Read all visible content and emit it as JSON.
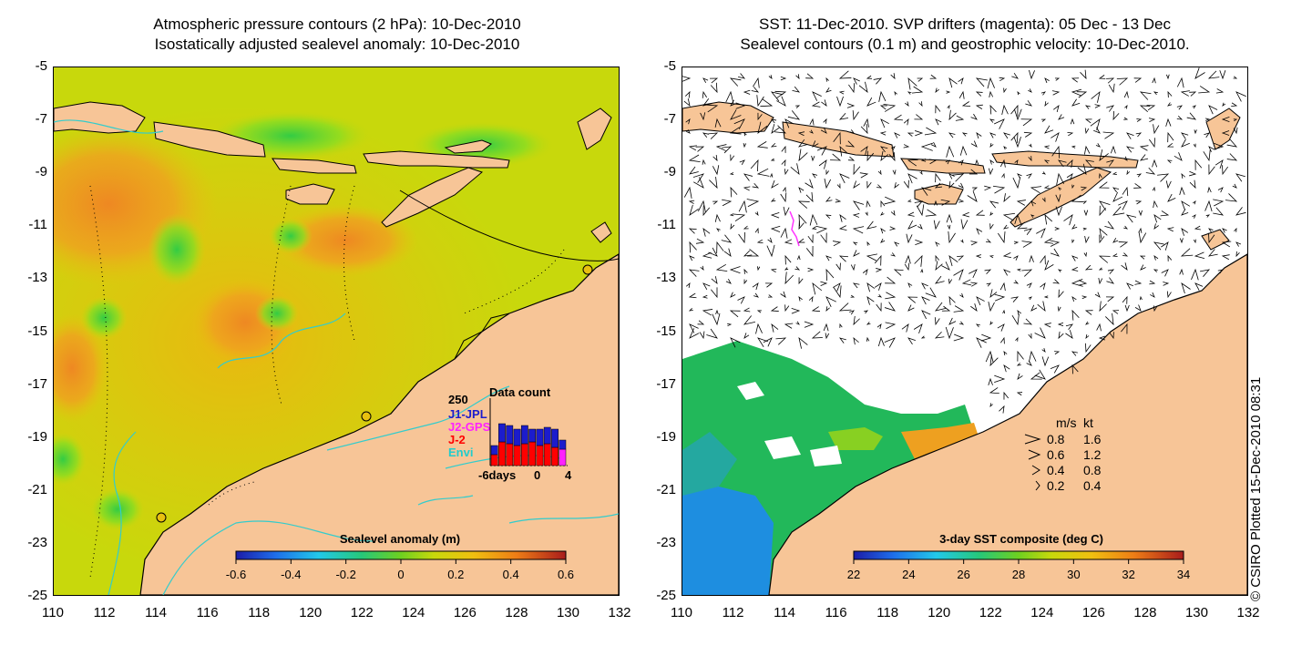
{
  "left_map": {
    "title_line1": "Atmospheric pressure contours (2 hPa): 10-Dec-2010",
    "title_line2": "Isostatically adjusted sealevel anomaly: 10-Dec-2010",
    "y_ticks": [
      "-5",
      "-7",
      "-9",
      "-11",
      "-13",
      "-15",
      "-17",
      "-19",
      "-21",
      "-23",
      "-25"
    ],
    "x_ticks": [
      "110",
      "112",
      "114",
      "116",
      "118",
      "120",
      "122",
      "124",
      "126",
      "128",
      "130",
      "132"
    ],
    "colorbar": {
      "title": "Sealevel anomaly (m)",
      "ticks": [
        "-0.6",
        "-0.4",
        "-0.2",
        "0",
        "0.2",
        "0.4",
        "0.6"
      ]
    },
    "data_count": {
      "title": "Data count",
      "max_label": "250",
      "legend": [
        {
          "label": "J1-JPL",
          "color": "#1c1ccc"
        },
        {
          "label": "J2-GPS",
          "color": "#ff22ff"
        },
        {
          "label": "J-2",
          "color": "#ff0000"
        },
        {
          "label": "Envi",
          "color": "#22cccc"
        }
      ],
      "x_labels": [
        "-6days",
        "0",
        "4"
      ]
    }
  },
  "right_map": {
    "title_line1": "SST: 11-Dec-2010. SVP drifters (magenta): 05 Dec - 13 Dec",
    "title_line2": "Sealevel contours (0.1 m) and geostrophic velocity: 10-Dec-2010.",
    "y_ticks": [
      "-5",
      "-7",
      "-9",
      "-11",
      "-13",
      "-15",
      "-17",
      "-19",
      "-21",
      "-23",
      "-25"
    ],
    "x_ticks": [
      "110",
      "112",
      "114",
      "116",
      "118",
      "120",
      "122",
      "124",
      "126",
      "128",
      "130",
      "132"
    ],
    "colorbar": {
      "title": "3-day SST composite (deg C)",
      "ticks": [
        "22",
        "24",
        "26",
        "28",
        "30",
        "32",
        "34"
      ]
    },
    "velocity_key": {
      "header_ms": "m/s",
      "header_kt": "kt",
      "rows": [
        {
          "ms": "0.8",
          "kt": "1.6"
        },
        {
          "ms": "0.6",
          "kt": "1.2"
        },
        {
          "ms": "0.4",
          "kt": "0.8"
        },
        {
          "ms": "0.2",
          "kt": "0.4"
        }
      ]
    }
  },
  "credit": "© CSIRO Plotted 15-Dec-2010 08:31",
  "colors": {
    "land": "#f7c597",
    "ocean_base": "#c8d80c",
    "contour": "#33cccc",
    "drifter": "#ff33ff"
  }
}
